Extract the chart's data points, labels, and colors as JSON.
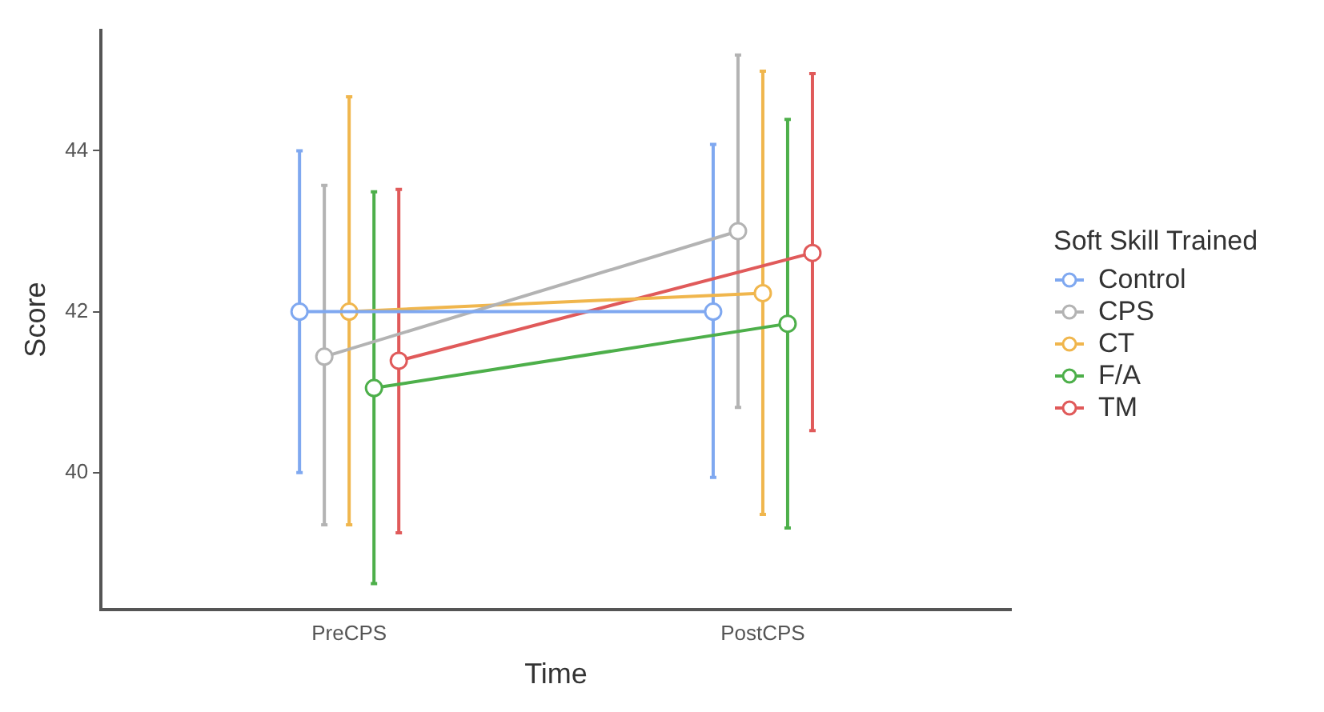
{
  "chart_data": {
    "type": "line",
    "xlabel": "Time",
    "ylabel": "Score",
    "legend_title": "Soft Skill Trained",
    "categories": [
      "PreCPS",
      "PostCPS"
    ],
    "series": [
      {
        "name": "Control",
        "color": "#7fa8f0",
        "values": [
          42.0,
          42.0
        ],
        "errors": [
          [
            40.0,
            44.0
          ],
          [
            39.94,
            44.08
          ]
        ]
      },
      {
        "name": "CPS",
        "color": "#b3b3b3",
        "values": [
          41.44,
          43.0
        ],
        "errors": [
          [
            39.35,
            43.57
          ],
          [
            40.81,
            45.19
          ]
        ]
      },
      {
        "name": "CT",
        "color": "#f0b64d",
        "values": [
          42.0,
          42.23
        ],
        "errors": [
          [
            39.35,
            44.67
          ],
          [
            39.48,
            44.99
          ]
        ]
      },
      {
        "name": "F/A",
        "color": "#4daf4a",
        "values": [
          41.05,
          41.85
        ],
        "errors": [
          [
            38.62,
            43.49
          ],
          [
            39.31,
            44.39
          ]
        ]
      },
      {
        "name": "TM",
        "color": "#e05a5a",
        "values": [
          41.39,
          42.73
        ],
        "errors": [
          [
            39.25,
            43.52
          ],
          [
            40.52,
            44.96
          ]
        ]
      }
    ],
    "ylim": [
      38.3,
      45.5
    ],
    "yticks": [
      40,
      42,
      44
    ],
    "grid": false,
    "legend": "right",
    "marker": "circle",
    "line_style": "solid"
  }
}
